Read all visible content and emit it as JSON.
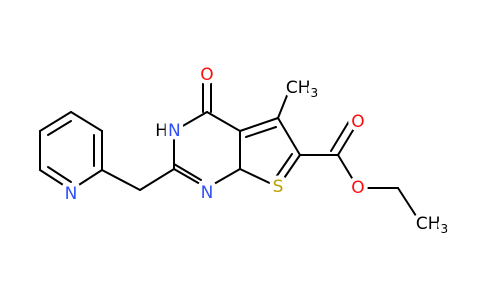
{
  "atoms": [
    {
      "label": "O"
    },
    {
      "label": "CH",
      "subscript": "3"
    },
    {
      "prefix": "H",
      "label": "N"
    },
    {
      "label": "N"
    },
    {
      "label": "N"
    },
    {
      "label": "S"
    },
    {
      "label": "O"
    },
    {
      "label": "O"
    },
    {
      "label": "CH",
      "subscript": "3"
    }
  ]
}
